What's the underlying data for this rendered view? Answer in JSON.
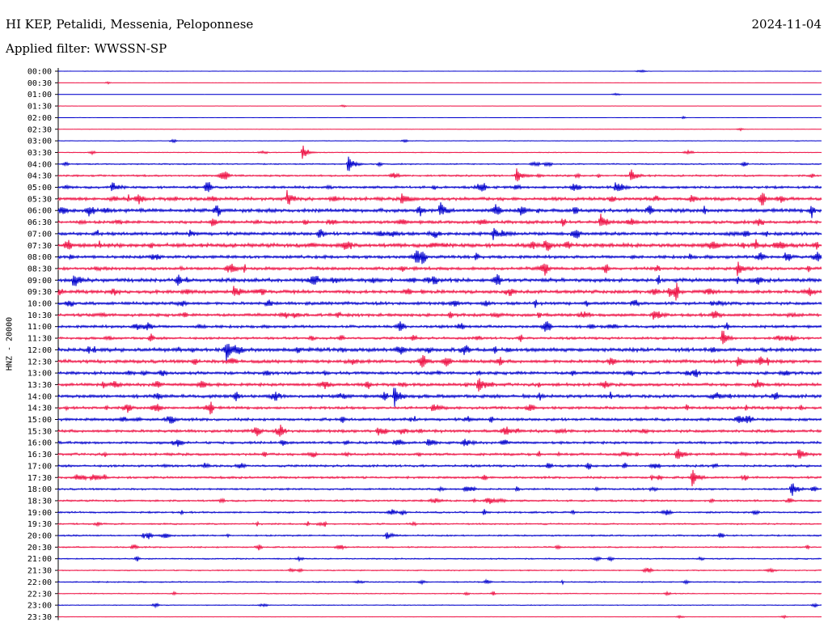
{
  "header": {
    "title": "HI KEP, Petalidi, Messenia, Peloponnese",
    "date": "2024-11-04",
    "filter": "Applied filter: WWSSN-SP"
  },
  "chart_data": {
    "type": "line",
    "ylabel": "HNZ - 20000",
    "row_colors": [
      "#0000cc",
      "#ee1144"
    ],
    "grid": false,
    "time_labels": [
      "00:00",
      "00:30",
      "01:00",
      "01:30",
      "02:00",
      "02:30",
      "03:00",
      "03:30",
      "04:00",
      "04:30",
      "05:00",
      "05:30",
      "06:00",
      "06:30",
      "07:00",
      "07:30",
      "08:00",
      "08:30",
      "09:00",
      "09:30",
      "10:00",
      "10:30",
      "11:00",
      "11:30",
      "12:00",
      "12:30",
      "13:00",
      "13:30",
      "14:00",
      "14:30",
      "15:00",
      "15:30",
      "16:00",
      "16:30",
      "17:00",
      "17:30",
      "18:00",
      "18:30",
      "19:00",
      "19:30",
      "20:00",
      "20:30",
      "21:00",
      "21:30",
      "22:00",
      "22:30",
      "23:00",
      "23:30"
    ],
    "noise_levels": [
      0.1,
      0.1,
      0.1,
      0.15,
      0.1,
      0.15,
      0.4,
      0.5,
      0.8,
      1.2,
      1.6,
      2.2,
      2.4,
      2.0,
      2.2,
      2.6,
      2.0,
      2.0,
      2.4,
      2.2,
      2.0,
      2.0,
      1.8,
      1.6,
      2.4,
      2.2,
      2.0,
      2.0,
      2.2,
      1.8,
      1.8,
      1.9,
      1.6,
      1.6,
      1.5,
      1.4,
      1.2,
      1.2,
      1.1,
      1.0,
      1.0,
      0.9,
      0.8,
      0.7,
      0.8,
      0.6,
      0.5,
      0.3
    ],
    "events": [
      {
        "row": 7,
        "pos": 0.32,
        "amp": 10
      },
      {
        "row": 8,
        "pos": 0.38,
        "amp": 12
      },
      {
        "row": 9,
        "pos": 0.6,
        "amp": 10
      },
      {
        "row": 9,
        "pos": 0.75,
        "amp": 9
      },
      {
        "row": 10,
        "pos": 0.07,
        "amp": 8
      },
      {
        "row": 10,
        "pos": 0.73,
        "amp": 9
      },
      {
        "row": 11,
        "pos": 0.3,
        "amp": 10
      },
      {
        "row": 11,
        "pos": 0.45,
        "amp": 8
      },
      {
        "row": 12,
        "pos": 0.5,
        "amp": 10
      },
      {
        "row": 13,
        "pos": 0.71,
        "amp": 10
      },
      {
        "row": 14,
        "pos": 0.57,
        "amp": 7
      },
      {
        "row": 16,
        "pos": 0.47,
        "amp": 9
      },
      {
        "row": 17,
        "pos": 0.89,
        "amp": 9
      },
      {
        "row": 18,
        "pos": 0.02,
        "amp": 10
      },
      {
        "row": 19,
        "pos": 0.23,
        "amp": 9
      },
      {
        "row": 19,
        "pos": 0.8,
        "amp": 9
      },
      {
        "row": 21,
        "pos": 0.78,
        "amp": 8
      },
      {
        "row": 23,
        "pos": 0.87,
        "amp": 12
      },
      {
        "row": 24,
        "pos": 0.22,
        "amp": 10
      },
      {
        "row": 25,
        "pos": 0.89,
        "amp": 7
      },
      {
        "row": 27,
        "pos": 0.55,
        "amp": 12
      },
      {
        "row": 28,
        "pos": 0.44,
        "amp": 12
      },
      {
        "row": 29,
        "pos": 0.49,
        "amp": 7
      },
      {
        "row": 33,
        "pos": 0.81,
        "amp": 9
      },
      {
        "row": 33,
        "pos": 0.97,
        "amp": 8
      },
      {
        "row": 35,
        "pos": 0.83,
        "amp": 11
      },
      {
        "row": 36,
        "pos": 0.96,
        "amp": 10
      },
      {
        "row": 40,
        "pos": 0.43,
        "amp": 5
      }
    ]
  }
}
